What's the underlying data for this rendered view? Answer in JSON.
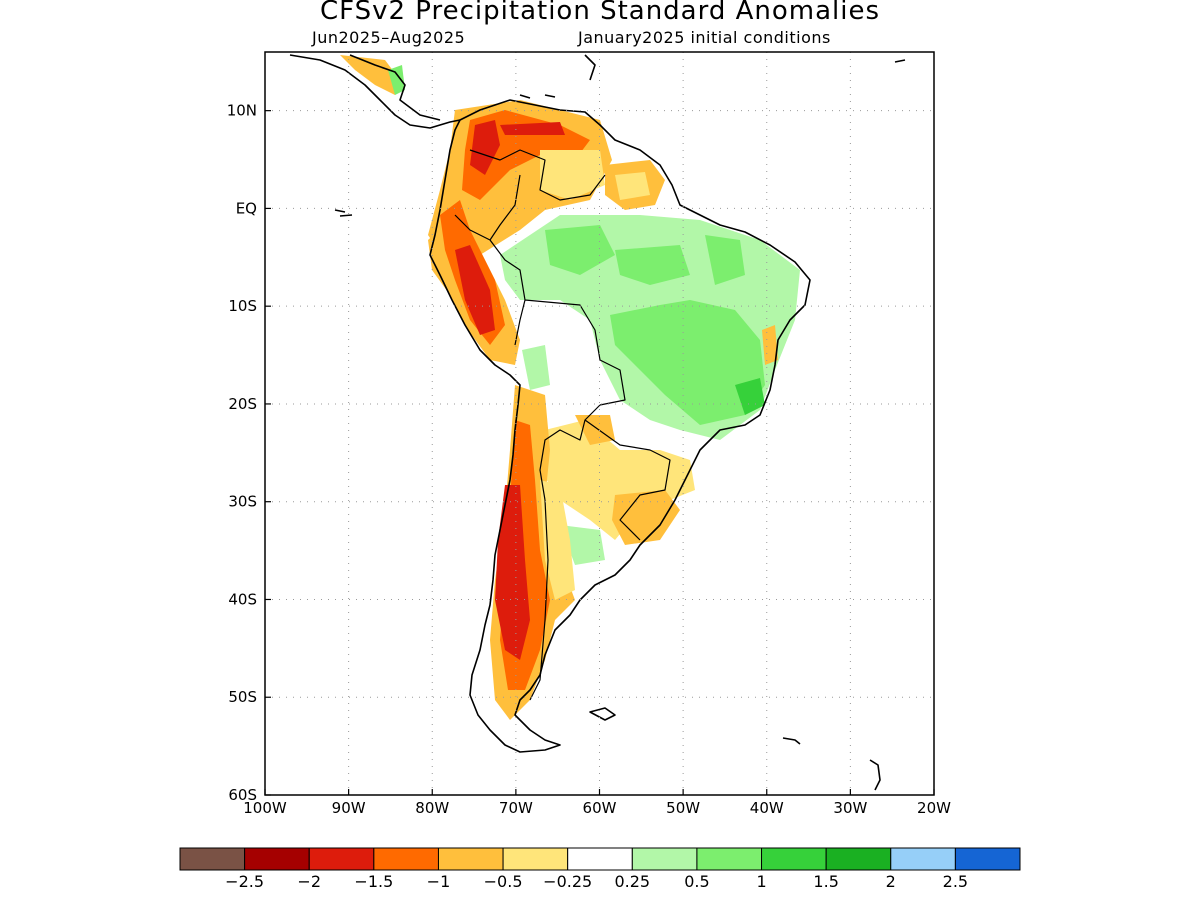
{
  "title": "CFSv2 Precipitation Standard Anomalies",
  "subtitle_period": "Jun2025–Aug2025",
  "subtitle_ic": "January2025 initial conditions",
  "map": {
    "lon_range": [
      -100,
      -20
    ],
    "lat_range": [
      -60,
      16
    ],
    "lon_ticks": [
      "100W",
      "90W",
      "80W",
      "70W",
      "60W",
      "50W",
      "40W",
      "30W",
      "20W"
    ],
    "lat_ticks": [
      "10N",
      "EQ",
      "10S",
      "20S",
      "30S",
      "40S",
      "50S",
      "60S"
    ],
    "grid": "dotted",
    "region": "South America"
  },
  "colorbar": {
    "colors": [
      "#7a5245",
      "#a50000",
      "#dd1c0c",
      "#ff6a00",
      "#ffbf3c",
      "#ffe57a",
      "#ffffff",
      "#b2f7a8",
      "#7cee6e",
      "#36d13a",
      "#1ab022",
      "#96cff8",
      "#1565d4"
    ],
    "labels": [
      "−2.5",
      "−2",
      "−1.5",
      "−1",
      "−0.5",
      "−0.25",
      "0.25",
      "0.5",
      "1",
      "1.5",
      "2",
      "2.5"
    ]
  }
}
